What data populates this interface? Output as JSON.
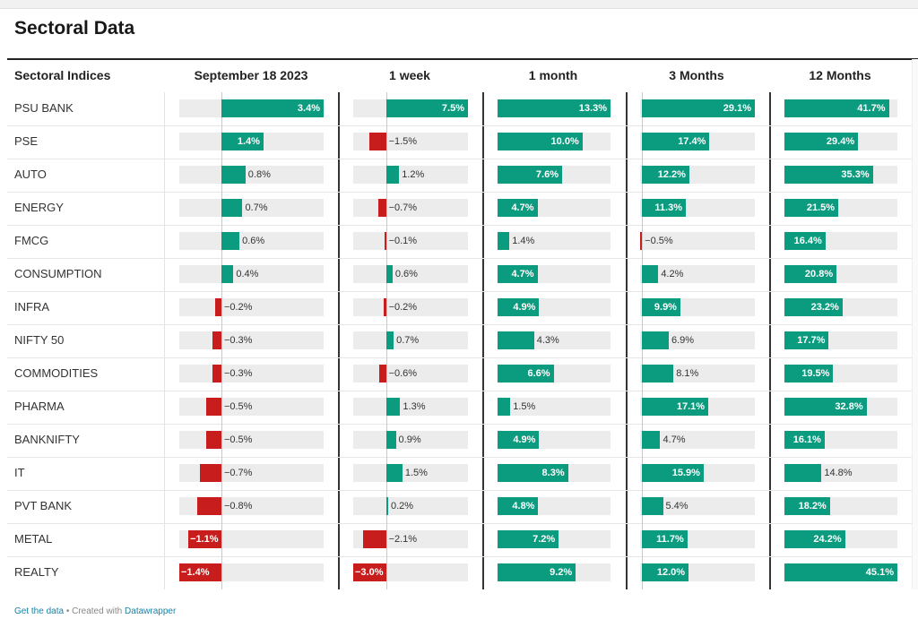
{
  "title": "Sectoral Data",
  "footer": {
    "get_data": "Get the data",
    "separator": " • Created with ",
    "credit": "Datawrapper"
  },
  "colors": {
    "positive": "#0b9b7e",
    "negative": "#c71e1d",
    "track": "#ececec"
  },
  "chart_data": {
    "type": "table",
    "row_header": "Sectoral Indices",
    "columns": [
      "September 18 2023",
      "1 week",
      "1 month",
      "3 Months",
      "12 Months"
    ],
    "rows": [
      {
        "name": "PSU BANK",
        "values": [
          3.4,
          7.5,
          13.3,
          29.1,
          41.7
        ]
      },
      {
        "name": "PSE",
        "values": [
          1.4,
          -1.5,
          10.0,
          17.4,
          29.4
        ]
      },
      {
        "name": "AUTO",
        "values": [
          0.8,
          1.2,
          7.6,
          12.2,
          35.3
        ]
      },
      {
        "name": "ENERGY",
        "values": [
          0.7,
          -0.7,
          4.7,
          11.3,
          21.5
        ]
      },
      {
        "name": "FMCG",
        "values": [
          0.6,
          -0.1,
          1.4,
          -0.5,
          16.4
        ]
      },
      {
        "name": "CONSUMPTION",
        "values": [
          0.4,
          0.6,
          4.7,
          4.2,
          20.8
        ]
      },
      {
        "name": "INFRA",
        "values": [
          -0.2,
          -0.2,
          4.9,
          9.9,
          23.2
        ]
      },
      {
        "name": "NIFTY 50",
        "values": [
          -0.3,
          0.7,
          4.3,
          6.9,
          17.7
        ]
      },
      {
        "name": "COMMODITIES",
        "values": [
          -0.3,
          -0.6,
          6.6,
          8.1,
          19.5
        ]
      },
      {
        "name": "PHARMA",
        "values": [
          -0.5,
          1.3,
          1.5,
          17.1,
          32.8
        ]
      },
      {
        "name": "BANKNIFTY",
        "values": [
          -0.5,
          0.9,
          4.9,
          4.7,
          16.1
        ]
      },
      {
        "name": "IT",
        "values": [
          -0.7,
          1.5,
          8.3,
          15.9,
          14.8
        ]
      },
      {
        "name": "PVT BANK",
        "values": [
          -0.8,
          0.2,
          4.8,
          5.4,
          18.2
        ]
      },
      {
        "name": "METAL",
        "values": [
          -1.1,
          -2.1,
          7.2,
          11.7,
          24.2
        ]
      },
      {
        "name": "REALTY",
        "values": [
          -1.4,
          -3.0,
          9.2,
          12.0,
          45.1
        ]
      }
    ],
    "column_ranges": [
      [
        -1.4,
        3.4
      ],
      [
        -3.0,
        7.5
      ],
      [
        0,
        13.3
      ],
      [
        -0.5,
        29.1
      ],
      [
        0,
        45.1
      ]
    ],
    "grid": false,
    "legend": "none"
  }
}
